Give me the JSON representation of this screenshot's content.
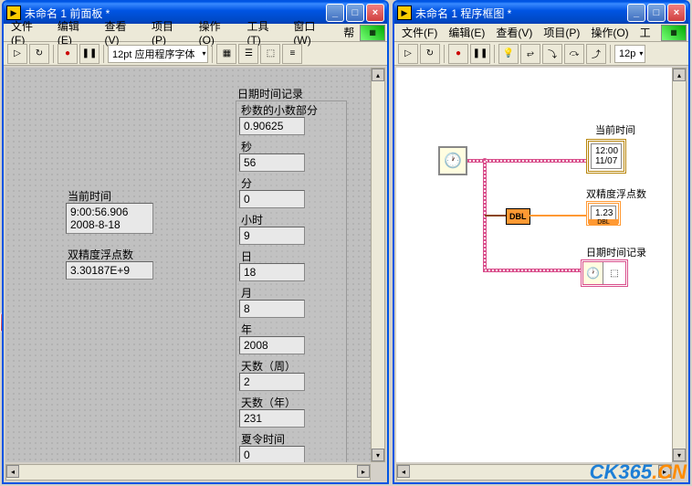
{
  "front_panel": {
    "title": "未命名 1 前面板 *",
    "menus": [
      "文件(F)",
      "编辑(E)",
      "查看(V)",
      "项目(P)",
      "操作(O)",
      "工具(T)",
      "窗口(W)",
      "帮"
    ],
    "font_selector": "12pt 应用程序字体",
    "current_time": {
      "label": "当前时间",
      "line1": "9:00:56.906",
      "line2": "2008-8-18"
    },
    "double_val": {
      "label": "双精度浮点数",
      "value": "3.30187E+9"
    },
    "cluster": {
      "title": "日期时间记录",
      "fields": [
        {
          "label": "秒数的小数部分",
          "value": "0.90625"
        },
        {
          "label": "秒",
          "value": "56"
        },
        {
          "label": "分",
          "value": "0"
        },
        {
          "label": "小时",
          "value": "9"
        },
        {
          "label": "日",
          "value": "18"
        },
        {
          "label": "月",
          "value": "8"
        },
        {
          "label": "年",
          "value": "2008"
        },
        {
          "label": "天数（周）",
          "value": "2"
        },
        {
          "label": "天数（年）",
          "value": "231"
        },
        {
          "label": "夏令时间",
          "value": "0"
        }
      ]
    }
  },
  "block_diagram": {
    "title": "未命名 1 程序框图 *",
    "menus": [
      "文件(F)",
      "编辑(E)",
      "查看(V)",
      "项目(P)",
      "操作(O)",
      "工"
    ],
    "font_selector": "12p",
    "labels": {
      "current_time": "当前时间",
      "double": "双精度浮点数",
      "cluster": "日期时间记录"
    },
    "dbl_text": "DBL",
    "num_indicator": "1.23"
  },
  "watermark": {
    "a": "CK365",
    "b": ".CN"
  }
}
